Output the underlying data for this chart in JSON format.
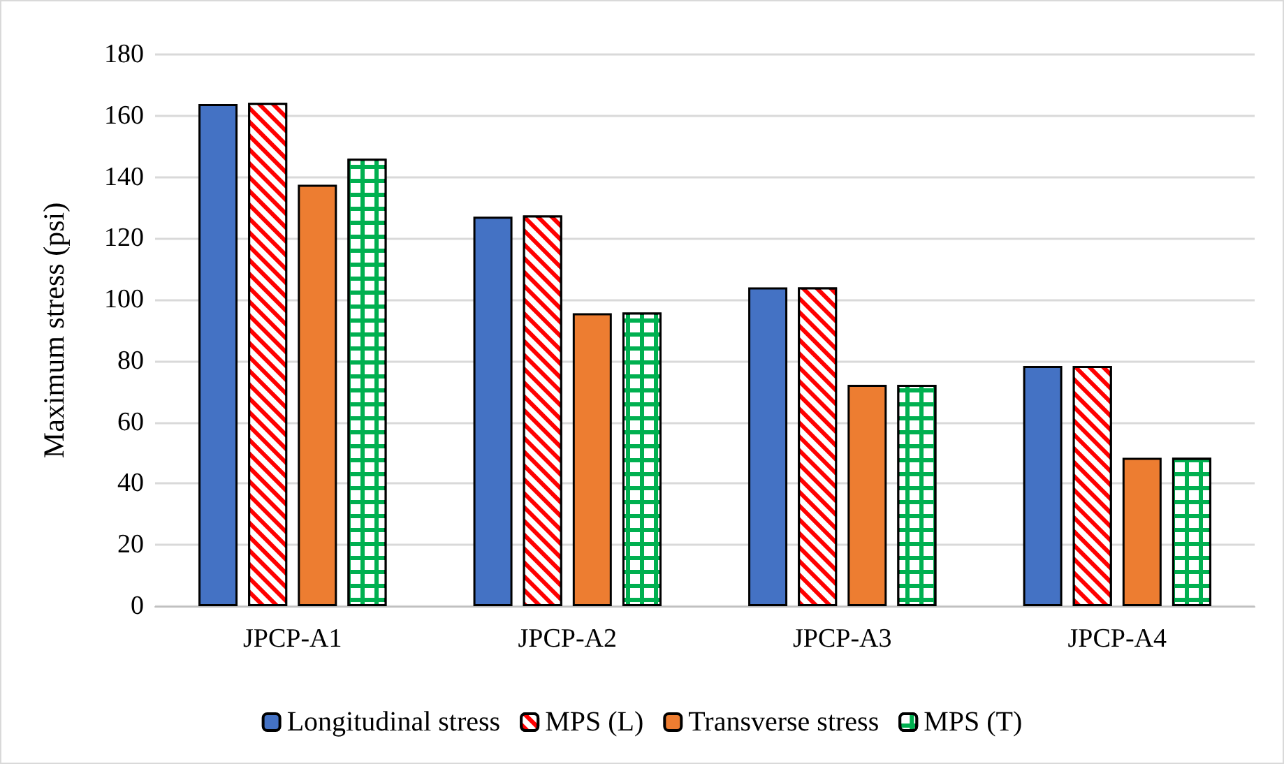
{
  "chart_data": {
    "type": "bar",
    "ylabel": "Maximum stress (psi)",
    "categories": [
      "JPCP-A1",
      "JPCP-A2",
      "JPCP-A3",
      "JPCP-A4"
    ],
    "series": [
      {
        "name": "Longitudinal stress",
        "color": "#4472c4",
        "values": [
          163.8,
          127.1,
          104,
          78.4
        ]
      },
      {
        "name": "MPS (L)",
        "color": "#ff0000",
        "values": [
          164.2,
          127.5,
          104,
          78.4
        ]
      },
      {
        "name": "Transverse stress",
        "color": "#ed7d31",
        "values": [
          137.5,
          95.6,
          72.2,
          48.4
        ]
      },
      {
        "name": "MPS (T)",
        "color": "#00b050",
        "values": [
          146,
          95.8,
          72.2,
          48.4
        ]
      }
    ],
    "ylim": [
      0,
      180
    ],
    "yticks": [
      0,
      20,
      40,
      60,
      80,
      100,
      120,
      140,
      160,
      180
    ],
    "grid": "y",
    "legend": "bottom"
  }
}
